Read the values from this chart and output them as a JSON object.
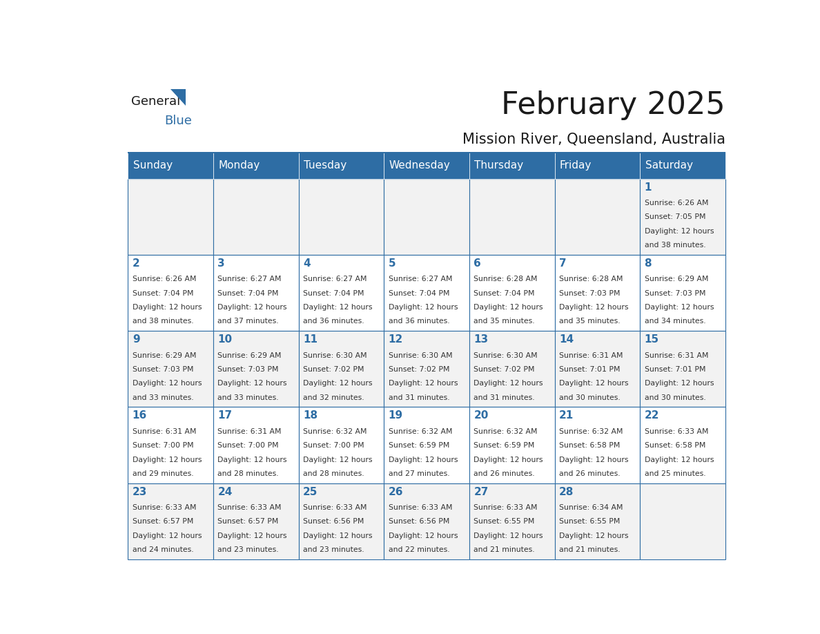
{
  "title": "February 2025",
  "subtitle": "Mission River, Queensland, Australia",
  "header_bg": "#2E6DA4",
  "header_text_color": "#FFFFFF",
  "cell_bg_odd": "#F2F2F2",
  "cell_bg_even": "#FFFFFF",
  "day_number_color": "#2E6DA4",
  "info_text_color": "#333333",
  "border_color": "#2E6DA4",
  "days_of_week": [
    "Sunday",
    "Monday",
    "Tuesday",
    "Wednesday",
    "Thursday",
    "Friday",
    "Saturday"
  ],
  "weeks": [
    [
      {
        "day": null,
        "info": ""
      },
      {
        "day": null,
        "info": ""
      },
      {
        "day": null,
        "info": ""
      },
      {
        "day": null,
        "info": ""
      },
      {
        "day": null,
        "info": ""
      },
      {
        "day": null,
        "info": ""
      },
      {
        "day": 1,
        "info": "Sunrise: 6:26 AM\nSunset: 7:05 PM\nDaylight: 12 hours\nand 38 minutes."
      }
    ],
    [
      {
        "day": 2,
        "info": "Sunrise: 6:26 AM\nSunset: 7:04 PM\nDaylight: 12 hours\nand 38 minutes."
      },
      {
        "day": 3,
        "info": "Sunrise: 6:27 AM\nSunset: 7:04 PM\nDaylight: 12 hours\nand 37 minutes."
      },
      {
        "day": 4,
        "info": "Sunrise: 6:27 AM\nSunset: 7:04 PM\nDaylight: 12 hours\nand 36 minutes."
      },
      {
        "day": 5,
        "info": "Sunrise: 6:27 AM\nSunset: 7:04 PM\nDaylight: 12 hours\nand 36 minutes."
      },
      {
        "day": 6,
        "info": "Sunrise: 6:28 AM\nSunset: 7:04 PM\nDaylight: 12 hours\nand 35 minutes."
      },
      {
        "day": 7,
        "info": "Sunrise: 6:28 AM\nSunset: 7:03 PM\nDaylight: 12 hours\nand 35 minutes."
      },
      {
        "day": 8,
        "info": "Sunrise: 6:29 AM\nSunset: 7:03 PM\nDaylight: 12 hours\nand 34 minutes."
      }
    ],
    [
      {
        "day": 9,
        "info": "Sunrise: 6:29 AM\nSunset: 7:03 PM\nDaylight: 12 hours\nand 33 minutes."
      },
      {
        "day": 10,
        "info": "Sunrise: 6:29 AM\nSunset: 7:03 PM\nDaylight: 12 hours\nand 33 minutes."
      },
      {
        "day": 11,
        "info": "Sunrise: 6:30 AM\nSunset: 7:02 PM\nDaylight: 12 hours\nand 32 minutes."
      },
      {
        "day": 12,
        "info": "Sunrise: 6:30 AM\nSunset: 7:02 PM\nDaylight: 12 hours\nand 31 minutes."
      },
      {
        "day": 13,
        "info": "Sunrise: 6:30 AM\nSunset: 7:02 PM\nDaylight: 12 hours\nand 31 minutes."
      },
      {
        "day": 14,
        "info": "Sunrise: 6:31 AM\nSunset: 7:01 PM\nDaylight: 12 hours\nand 30 minutes."
      },
      {
        "day": 15,
        "info": "Sunrise: 6:31 AM\nSunset: 7:01 PM\nDaylight: 12 hours\nand 30 minutes."
      }
    ],
    [
      {
        "day": 16,
        "info": "Sunrise: 6:31 AM\nSunset: 7:00 PM\nDaylight: 12 hours\nand 29 minutes."
      },
      {
        "day": 17,
        "info": "Sunrise: 6:31 AM\nSunset: 7:00 PM\nDaylight: 12 hours\nand 28 minutes."
      },
      {
        "day": 18,
        "info": "Sunrise: 6:32 AM\nSunset: 7:00 PM\nDaylight: 12 hours\nand 28 minutes."
      },
      {
        "day": 19,
        "info": "Sunrise: 6:32 AM\nSunset: 6:59 PM\nDaylight: 12 hours\nand 27 minutes."
      },
      {
        "day": 20,
        "info": "Sunrise: 6:32 AM\nSunset: 6:59 PM\nDaylight: 12 hours\nand 26 minutes."
      },
      {
        "day": 21,
        "info": "Sunrise: 6:32 AM\nSunset: 6:58 PM\nDaylight: 12 hours\nand 26 minutes."
      },
      {
        "day": 22,
        "info": "Sunrise: 6:33 AM\nSunset: 6:58 PM\nDaylight: 12 hours\nand 25 minutes."
      }
    ],
    [
      {
        "day": 23,
        "info": "Sunrise: 6:33 AM\nSunset: 6:57 PM\nDaylight: 12 hours\nand 24 minutes."
      },
      {
        "day": 24,
        "info": "Sunrise: 6:33 AM\nSunset: 6:57 PM\nDaylight: 12 hours\nand 23 minutes."
      },
      {
        "day": 25,
        "info": "Sunrise: 6:33 AM\nSunset: 6:56 PM\nDaylight: 12 hours\nand 23 minutes."
      },
      {
        "day": 26,
        "info": "Sunrise: 6:33 AM\nSunset: 6:56 PM\nDaylight: 12 hours\nand 22 minutes."
      },
      {
        "day": 27,
        "info": "Sunrise: 6:33 AM\nSunset: 6:55 PM\nDaylight: 12 hours\nand 21 minutes."
      },
      {
        "day": 28,
        "info": "Sunrise: 6:34 AM\nSunset: 6:55 PM\nDaylight: 12 hours\nand 21 minutes."
      },
      {
        "day": null,
        "info": ""
      }
    ]
  ],
  "logo_text_general": "General",
  "logo_text_blue": "Blue",
  "logo_color_general": "#1a1a1a",
  "logo_color_blue": "#2E6DA4",
  "logo_triangle_color": "#2E6DA4"
}
